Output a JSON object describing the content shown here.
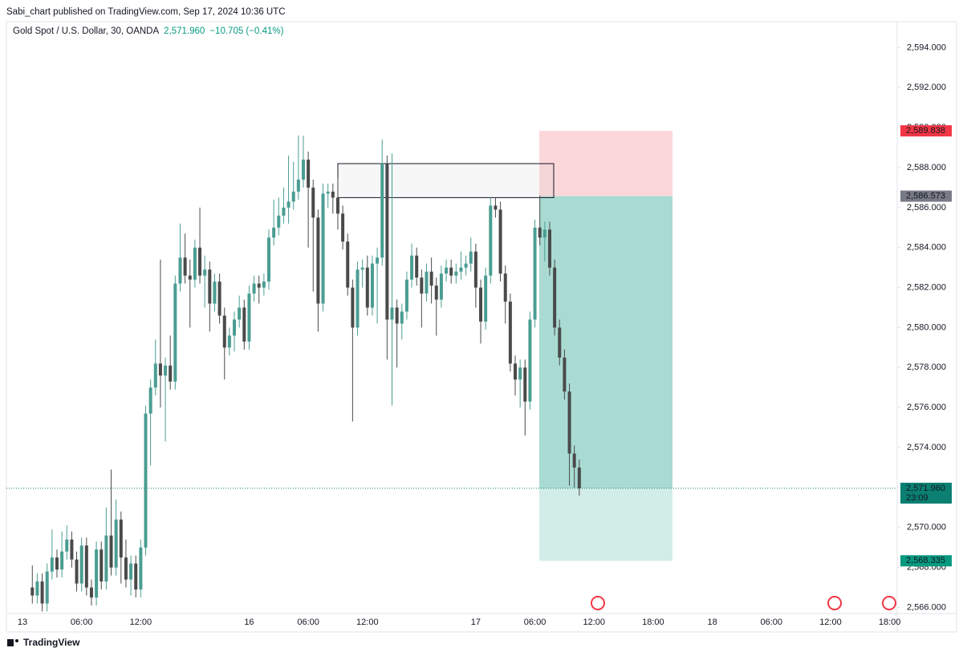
{
  "header": {
    "published": "Sabi_chart published on TradingView.com, Sep 17, 2024 10:36 UTC",
    "symbol": "Gold Spot / U.S. Dollar, 30, OANDA",
    "price": "2,571.960",
    "change": "−10.705 (−0.41%)"
  },
  "footer": {
    "brand": "TradingView"
  },
  "chart_data": {
    "type": "candlestick",
    "up_color": "#4a9d92",
    "down_color": "#4a4a4a",
    "categories": [
      "13",
      null,
      null,
      null,
      null,
      null,
      null,
      null,
      null,
      null,
      null,
      null,
      "06:00",
      null,
      null,
      null,
      null,
      null,
      null,
      null,
      null,
      null,
      null,
      null,
      "12:00",
      null,
      null,
      null,
      null,
      null,
      null,
      null,
      null,
      null,
      null,
      null,
      null,
      null,
      null,
      null,
      null,
      null,
      null,
      null,
      null,
      null,
      "16",
      null,
      null,
      null,
      null,
      null,
      null,
      null,
      null,
      null,
      null,
      null,
      "06:00",
      null,
      null,
      null,
      null,
      null,
      null,
      null,
      null,
      null,
      null,
      null,
      "12:00",
      null,
      null,
      null,
      null,
      null,
      null,
      null,
      null,
      null,
      null,
      null,
      null,
      null,
      null,
      null,
      null,
      null,
      null,
      null,
      null,
      null,
      "17",
      null,
      null,
      null,
      null,
      null,
      null,
      null,
      null,
      null,
      null,
      null,
      "06:00",
      null,
      null,
      null,
      null,
      null,
      null,
      null,
      null,
      null,
      null,
      null,
      "12:00",
      null,
      null,
      null,
      null,
      null,
      null,
      null,
      null,
      null,
      null,
      null,
      "18:00",
      null,
      null,
      null,
      null,
      null,
      null,
      null,
      null,
      null,
      null,
      null,
      "18",
      null,
      null,
      null,
      null,
      null,
      null,
      null,
      null,
      null,
      null,
      null,
      "06:00",
      null,
      null,
      null,
      null,
      null,
      null,
      null,
      null,
      null,
      null,
      null,
      "12:00",
      null,
      null,
      null,
      null,
      null,
      null,
      null,
      null,
      null,
      null,
      null,
      "18:00"
    ],
    "open": [
      null,
      null,
      2567.0,
      2566.6,
      2567.3,
      2566.2,
      2567.8,
      2568.5,
      2567.9,
      2568.8,
      2569.4,
      2568.4,
      2567.2,
      2569.1,
      2567.0,
      2566.5,
      2568.9,
      2567.3,
      2569.6,
      2568.0,
      2570.4,
      2568.5,
      2567.4,
      2568.2,
      2566.9,
      2569.0,
      2575.7,
      2577.0,
      2578.2,
      2577.6,
      2578.1,
      2577.3,
      2582.2,
      2583.5,
      2582.6,
      2582.4,
      2584.0,
      2582.6,
      2582.9,
      2581.2,
      2582.3,
      2580.6,
      2579.0,
      2579.6,
      2580.4,
      2581.0,
      2579.3,
      2581.7,
      2582.2,
      2582.0,
      2582.3,
      2584.5,
      2585.0,
      2585.6,
      2586.0,
      2586.3,
      2586.8,
      2587.4,
      2588.4,
      2587.0,
      2585.5,
      2581.2,
      2586.7,
      2586.8,
      2586.5,
      2585.7,
      2584.3,
      2582.0,
      2580.0,
      2582.9,
      2583.0,
      2581.0,
      2583.2,
      2583.5,
      2588.2,
      2580.4,
      2581.0,
      2580.2,
      2580.8,
      2582.4,
      2583.6,
      2582.5,
      2581.7,
      2582.8,
      2582.1,
      2581.4,
      2582.7,
      2583.0,
      2582.6,
      2582.8,
      2583.0,
      2583.2,
      2583.8,
      2582.0,
      2580.3,
      2582.6,
      2586.1,
      2585.9,
      2582.7,
      2581.3,
      2578.2,
      2577.4,
      2578.0,
      2576.3,
      2580.4,
      2585.0,
      2584.5,
      2584.9,
      2583.0,
      2580.0,
      2578.5,
      2576.8,
      2573.7,
      2573.0,
      null,
      null,
      null,
      null,
      null,
      null,
      null,
      null,
      null,
      null,
      null,
      null,
      null,
      null,
      null,
      null,
      null,
      null,
      null,
      null,
      null,
      null,
      null,
      null,
      null,
      null,
      null,
      null,
      null,
      null,
      null,
      null,
      null,
      null,
      null,
      null,
      null,
      null,
      null,
      null,
      null,
      null,
      null,
      null,
      null,
      null,
      null,
      null,
      null,
      null,
      null,
      null,
      null,
      null,
      null,
      null,
      null,
      null,
      null,
      null,
      null,
      null,
      null
    ],
    "high": [
      null,
      null,
      2568.1,
      2567.7,
      2567.7,
      2568.2,
      2569.9,
      2568.9,
      2569.8,
      2570.1,
      2569.8,
      2568.8,
      2569.5,
      2569.5,
      2567.4,
      2569.3,
      2569.3,
      2571.0,
      2572.9,
      2571.4,
      2570.8,
      2569.4,
      2568.6,
      2568.6,
      2569.4,
      2576.1,
      2577.4,
      2579.4,
      2583.4,
      2578.5,
      2579.6,
      2582.6,
      2585.2,
      2584.7,
      2583.4,
      2584.4,
      2586.0,
      2583.6,
      2583.3,
      2582.7,
      2582.7,
      2581.0,
      2580.0,
      2580.8,
      2581.6,
      2581.4,
      2582.1,
      2582.6,
      2582.6,
      2582.7,
      2584.9,
      2586.4,
      2586.5,
      2587.0,
      2588.6,
      2588.3,
      2589.6,
      2589.6,
      2588.8,
      2587.4,
      2585.9,
      2587.2,
      2587.2,
      2587.2,
      2587.5,
      2586.1,
      2584.7,
      2582.4,
      2583.3,
      2583.4,
      2583.6,
      2583.6,
      2584.0,
      2589.4,
      2588.6,
      2588.7,
      2581.4,
      2581.2,
      2582.8,
      2584.2,
      2584.0,
      2582.9,
      2583.2,
      2583.5,
      2582.5,
      2583.1,
      2583.4,
      2583.4,
      2583.2,
      2583.8,
      2583.6,
      2584.5,
      2584.2,
      2582.4,
      2583.0,
      2586.5,
      2586.5,
      2586.3,
      2583.1,
      2581.7,
      2578.6,
      2578.4,
      2578.4,
      2580.8,
      2585.4,
      2586.6,
      2585.3,
      2585.3,
      2583.4,
      2580.4,
      2578.9,
      2577.2,
      2574.1,
      2573.4,
      null,
      null,
      null,
      null,
      null,
      null,
      null,
      null,
      null,
      null,
      null,
      null,
      null,
      null,
      null,
      null,
      null,
      null,
      null,
      null,
      null,
      null,
      null,
      null,
      null,
      null,
      null,
      null,
      null,
      null,
      null,
      null,
      null,
      null,
      null,
      null,
      null,
      null,
      null,
      null,
      null,
      null,
      null,
      null,
      null,
      null,
      null,
      null,
      null,
      null,
      null,
      null,
      null,
      null,
      null,
      null,
      null,
      null,
      null,
      null,
      null,
      null,
      null
    ],
    "low": [
      null,
      null,
      2566.2,
      2566.2,
      2565.8,
      2565.8,
      2567.4,
      2567.5,
      2567.5,
      2568.4,
      2568.0,
      2566.8,
      2566.8,
      2566.6,
      2566.1,
      2566.1,
      2566.9,
      2566.9,
      2567.6,
      2567.6,
      2567.2,
      2567.0,
      2566.6,
      2566.5,
      2566.5,
      2568.6,
      2573.1,
      2576.6,
      2576.0,
      2574.3,
      2576.9,
      2576.9,
      2581.8,
      2582.2,
      2580.0,
      2582.0,
      2582.2,
      2581.0,
      2579.8,
      2580.8,
      2580.2,
      2577.4,
      2578.6,
      2578.8,
      2580.0,
      2578.9,
      2578.9,
      2581.3,
      2581.2,
      2581.6,
      2581.9,
      2584.1,
      2584.6,
      2585.2,
      2585.2,
      2585.9,
      2586.4,
      2587.0,
      2584.0,
      2581.8,
      2579.8,
      2580.8,
      2586.0,
      2585.7,
      2584.9,
      2583.9,
      2581.6,
      2575.3,
      2579.6,
      2582.0,
      2580.6,
      2580.6,
      2580.2,
      2583.1,
      2578.4,
      2576.1,
      2578.0,
      2579.4,
      2580.4,
      2582.0,
      2582.1,
      2580.0,
      2581.3,
      2581.2,
      2579.6,
      2581.0,
      2582.3,
      2582.2,
      2582.2,
      2582.4,
      2582.6,
      2582.8,
      2581.0,
      2579.2,
      2579.9,
      2582.2,
      2585.5,
      2582.3,
      2580.2,
      2577.8,
      2576.6,
      2576.0,
      2574.6,
      2575.9,
      2580.0,
      2584.1,
      2583.3,
      2582.6,
      2579.6,
      2578.1,
      2576.4,
      2572.1,
      2572.0,
      2571.6,
      null,
      null,
      null,
      null,
      null,
      null,
      null,
      null,
      null,
      null,
      null,
      null,
      null,
      null,
      null,
      null,
      null,
      null,
      null,
      null,
      null,
      null,
      null,
      null,
      null,
      null,
      null,
      null,
      null,
      null,
      null,
      null,
      null,
      null,
      null,
      null,
      null,
      null,
      null,
      null,
      null,
      null,
      null,
      null,
      null,
      null,
      null,
      null,
      null,
      null,
      null,
      null,
      null,
      null,
      null,
      null,
      null,
      null,
      null,
      null,
      null,
      null,
      null
    ],
    "close": [
      null,
      null,
      2566.6,
      2567.3,
      2566.2,
      2567.8,
      2568.5,
      2567.9,
      2568.8,
      2569.4,
      2568.4,
      2567.2,
      2569.1,
      2567.0,
      2566.5,
      2568.9,
      2567.3,
      2569.6,
      2568.0,
      2570.4,
      2568.5,
      2567.4,
      2568.2,
      2566.9,
      2569.0,
      2575.7,
      2577.0,
      2578.2,
      2577.6,
      2578.1,
      2577.3,
      2582.2,
      2583.5,
      2582.6,
      2582.4,
      2584.0,
      2582.6,
      2582.9,
      2581.2,
      2582.3,
      2580.6,
      2579.0,
      2579.6,
      2580.4,
      2581.0,
      2579.3,
      2581.7,
      2582.2,
      2582.0,
      2582.3,
      2584.5,
      2585.0,
      2585.6,
      2586.0,
      2586.3,
      2586.8,
      2587.4,
      2588.4,
      2587.0,
      2585.5,
      2581.2,
      2586.7,
      2586.8,
      2586.5,
      2585.7,
      2584.3,
      2582.0,
      2580.0,
      2582.9,
      2583.0,
      2581.0,
      2583.2,
      2583.5,
      2588.2,
      2580.4,
      2581.0,
      2580.2,
      2580.8,
      2582.4,
      2583.6,
      2582.5,
      2581.7,
      2582.8,
      2582.1,
      2581.4,
      2582.7,
      2583.0,
      2582.6,
      2582.8,
      2583.0,
      2583.2,
      2583.8,
      2582.0,
      2580.3,
      2582.6,
      2586.1,
      2585.9,
      2582.7,
      2581.3,
      2578.2,
      2577.4,
      2578.0,
      2576.3,
      2580.4,
      2585.0,
      2584.5,
      2584.9,
      2583.0,
      2580.0,
      2578.5,
      2576.8,
      2573.7,
      2573.0,
      2571.96,
      null,
      null,
      null,
      null,
      null,
      null,
      null,
      null,
      null,
      null,
      null,
      null,
      null,
      null,
      null,
      null,
      null,
      null,
      null,
      null,
      null,
      null,
      null,
      null,
      null,
      null,
      null,
      null,
      null,
      null,
      null,
      null,
      null,
      null,
      null,
      null,
      null,
      null,
      null,
      null,
      null,
      null,
      null,
      null,
      null,
      null,
      null,
      null,
      null,
      null,
      null,
      null,
      null,
      null,
      null,
      null,
      null,
      null,
      null,
      null,
      null,
      null,
      null
    ],
    "ylim": [
      2565.7,
      2595.3
    ],
    "yticks": [
      {
        "value": 2566,
        "label": "2,566.000"
      },
      {
        "value": 2568,
        "label": "2,568.000"
      },
      {
        "value": 2570,
        "label": "2,570.000"
      },
      {
        "value": 2572,
        "label": "2,572.000"
      },
      {
        "value": 2574,
        "label": "2,574.000"
      },
      {
        "value": 2576,
        "label": "2,576.000"
      },
      {
        "value": 2578,
        "label": "2,578.000"
      },
      {
        "value": 2580,
        "label": "2,580.000"
      },
      {
        "value": 2582,
        "label": "2,582.000"
      },
      {
        "value": 2584,
        "label": "2,584.000"
      },
      {
        "value": 2586,
        "label": "2,586.000"
      },
      {
        "value": 2588,
        "label": "2,588.000"
      },
      {
        "value": 2590,
        "label": "2,590.000"
      },
      {
        "value": 2592,
        "label": "2,592.000"
      },
      {
        "value": 2594,
        "label": "2,594.000"
      }
    ],
    "last_price": {
      "value": 2571.96,
      "label": "2,571.960",
      "countdown": "23:09",
      "color": "#0a7f72"
    },
    "position": {
      "stop": {
        "value": 2589.838,
        "label": "2,589.838",
        "color": "#f23645"
      },
      "entry": {
        "value": 2586.573,
        "label": "2,586.573",
        "color": "#787b86"
      },
      "target": {
        "value": 2568.335,
        "label": "2,568.335",
        "color": "#089981"
      }
    },
    "zone": {
      "top": 2588.2,
      "bottom": 2586.5
    }
  }
}
